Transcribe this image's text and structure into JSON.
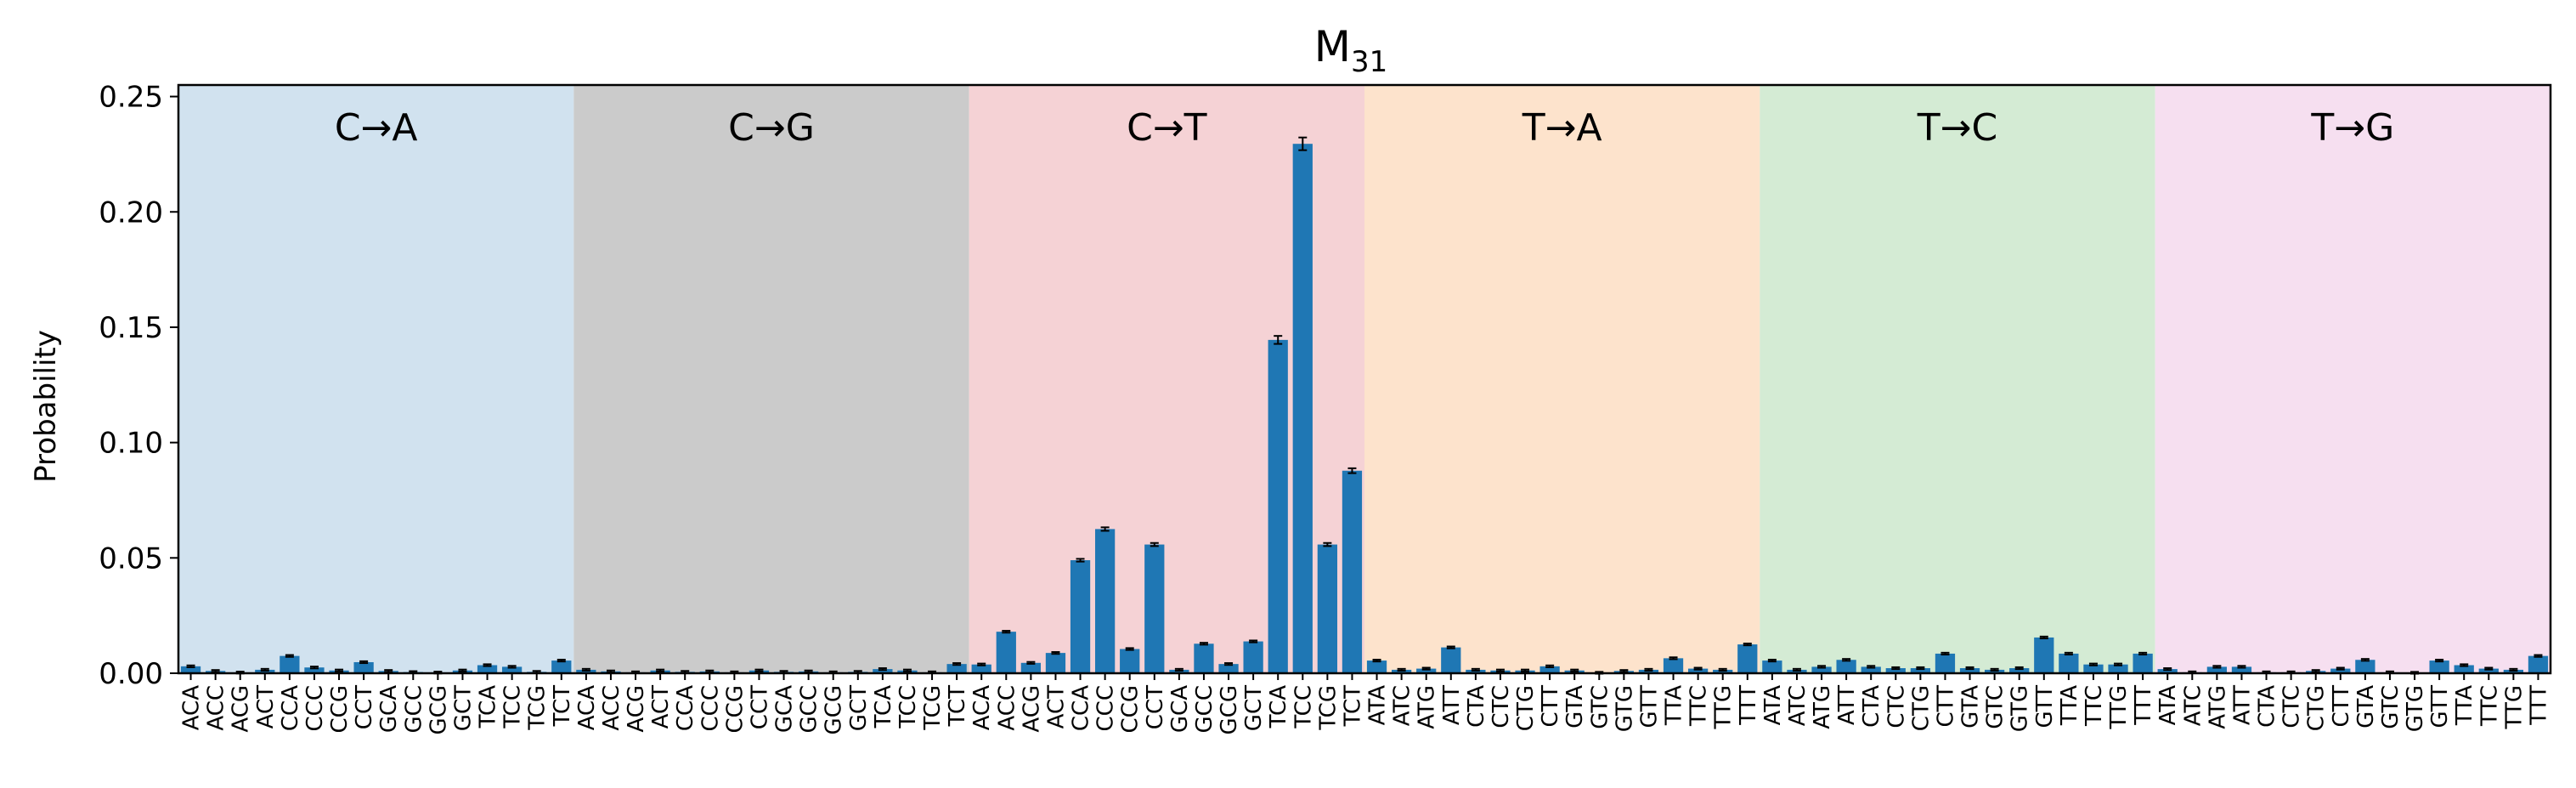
{
  "chart_data": {
    "type": "bar",
    "title": "M",
    "title_subscript": "31",
    "xlabel": "",
    "ylabel": "Probability",
    "ylim": [
      0,
      0.255
    ],
    "yticks": [
      0.0,
      0.05,
      0.1,
      0.15,
      0.2,
      0.25
    ],
    "ytick_labels": [
      "0.00",
      "0.05",
      "0.10",
      "0.15",
      "0.20",
      "0.25"
    ],
    "bar_color": "#1f77b4",
    "error_color": "#000000",
    "groups": [
      {
        "label": "C→A",
        "color": "#d1e2ef",
        "categories": [
          "ACA",
          "ACC",
          "ACG",
          "ACT",
          "CCA",
          "CCC",
          "CCG",
          "CCT",
          "GCA",
          "GCC",
          "GCG",
          "GCT",
          "TCA",
          "TCC",
          "TCG",
          "TCT"
        ],
        "values": [
          0.003,
          0.001,
          0.0003,
          0.0015,
          0.0075,
          0.0025,
          0.0012,
          0.0048,
          0.001,
          0.0005,
          0.0003,
          0.0012,
          0.0035,
          0.0028,
          0.0006,
          0.0055
        ]
      },
      {
        "label": "C→G",
        "color": "#cbcbcb",
        "categories": [
          "ACA",
          "ACC",
          "ACG",
          "ACT",
          "CCA",
          "CCC",
          "CCG",
          "CCT",
          "GCA",
          "GCC",
          "GCG",
          "GCT",
          "TCA",
          "TCC",
          "TCG",
          "TCT"
        ],
        "values": [
          0.0015,
          0.0008,
          0.0004,
          0.0012,
          0.0006,
          0.0008,
          0.0004,
          0.0012,
          0.0006,
          0.0008,
          0.0004,
          0.0006,
          0.0018,
          0.0012,
          0.0004,
          0.004
        ]
      },
      {
        "label": "C→T",
        "color": "#f5d2d5",
        "categories": [
          "ACA",
          "ACC",
          "ACG",
          "ACT",
          "CCA",
          "CCC",
          "CCG",
          "CCT",
          "GCA",
          "GCC",
          "GCG",
          "GCT",
          "TCA",
          "TCC",
          "TCG",
          "TCT"
        ],
        "values": [
          0.0038,
          0.018,
          0.0045,
          0.0088,
          0.049,
          0.0625,
          0.0105,
          0.0558,
          0.0015,
          0.0128,
          0.004,
          0.0138,
          0.1445,
          0.2295,
          0.0558,
          0.0878
        ]
      },
      {
        "label": "T→A",
        "color": "#fde3cc",
        "categories": [
          "ATA",
          "ATC",
          "ATG",
          "ATT",
          "CTA",
          "CTC",
          "CTG",
          "CTT",
          "GTA",
          "GTC",
          "GTG",
          "GTT",
          "TTA",
          "TTC",
          "TTG",
          "TTT"
        ],
        "values": [
          0.0055,
          0.0015,
          0.002,
          0.0112,
          0.0015,
          0.0012,
          0.0012,
          0.003,
          0.0012,
          0.0002,
          0.001,
          0.0015,
          0.0065,
          0.002,
          0.0015,
          0.0125
        ]
      },
      {
        "label": "T→C",
        "color": "#d4ebd4",
        "categories": [
          "ATA",
          "ATC",
          "ATG",
          "ATT",
          "CTA",
          "CTC",
          "CTG",
          "CTT",
          "GTA",
          "GTC",
          "GTG",
          "GTT",
          "TTA",
          "TTC",
          "TTG",
          "TTT"
        ],
        "values": [
          0.0055,
          0.0015,
          0.0028,
          0.0058,
          0.0028,
          0.0022,
          0.0022,
          0.0085,
          0.0022,
          0.0015,
          0.0022,
          0.0155,
          0.0085,
          0.0038,
          0.0038,
          0.0085
        ]
      },
      {
        "label": "T→G",
        "color": "#f6dff0",
        "categories": [
          "ATA",
          "ATC",
          "ATG",
          "ATT",
          "CTA",
          "CTC",
          "CTG",
          "CTT",
          "GTA",
          "GTC",
          "GTG",
          "GTT",
          "TTA",
          "TTC",
          "TTG",
          "TTT"
        ],
        "values": [
          0.0018,
          0.0004,
          0.0028,
          0.0028,
          0.0004,
          0.0004,
          0.001,
          0.002,
          0.0058,
          0.0004,
          0.0002,
          0.0055,
          0.0035,
          0.002,
          0.0015,
          0.0075
        ]
      }
    ]
  }
}
